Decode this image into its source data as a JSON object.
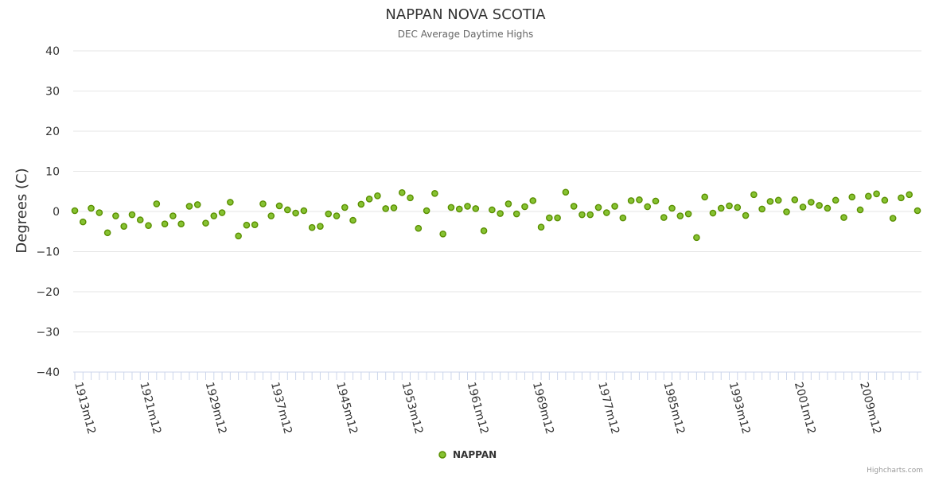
{
  "chart_data": {
    "type": "scatter",
    "title": "NAPPAN NOVA SCOTIA",
    "subtitle": "DEC Average Daytime Highs",
    "xlabel": "",
    "ylabel": "Degrees (C)",
    "ylim": [
      -40,
      40
    ],
    "yticks": [
      40,
      30,
      20,
      10,
      0,
      -10,
      -20,
      -30,
      -40
    ],
    "ytick_labels": [
      "40",
      "30",
      "20",
      "10",
      "0",
      "−10",
      "−20",
      "−30",
      "−40"
    ],
    "x_start_year": 1913,
    "x_end_year": 2016,
    "xtick_labels": [
      "1913m12",
      "1921m12",
      "1929m12",
      "1937m12",
      "1945m12",
      "1953m12",
      "1961m12",
      "1969m12",
      "1977m12",
      "1985m12",
      "1993m12",
      "2001m12",
      "2009m12"
    ],
    "xtick_years": [
      1913,
      1921,
      1929,
      1937,
      1945,
      1953,
      1961,
      1969,
      1977,
      1985,
      1993,
      2001,
      2009
    ],
    "grid": true,
    "legend": "bottom-center",
    "series": [
      {
        "name": "NAPPAN",
        "color": "#86c232",
        "edge_color": "#5a8f00",
        "x": [
          1913,
          1914,
          1915,
          1916,
          1917,
          1918,
          1919,
          1920,
          1921,
          1922,
          1923,
          1924,
          1925,
          1926,
          1927,
          1928,
          1929,
          1930,
          1931,
          1932,
          1933,
          1934,
          1935,
          1936,
          1937,
          1938,
          1939,
          1940,
          1941,
          1942,
          1943,
          1944,
          1945,
          1946,
          1947,
          1948,
          1949,
          1950,
          1951,
          1952,
          1953,
          1954,
          1955,
          1956,
          1957,
          1958,
          1959,
          1960,
          1961,
          1962,
          1963,
          1964,
          1965,
          1966,
          1967,
          1968,
          1969,
          1970,
          1971,
          1972,
          1973,
          1974,
          1975,
          1976,
          1977,
          1978,
          1979,
          1980,
          1981,
          1982,
          1983,
          1984,
          1985,
          1986,
          1987,
          1988,
          1989,
          1990,
          1991,
          1992,
          1993,
          1994,
          1995,
          1996,
          1997,
          1998,
          1999,
          2000,
          2001,
          2002,
          2003,
          2004,
          2005,
          2006,
          2007,
          2008,
          2009,
          2010,
          2011,
          2012,
          2013,
          2014,
          2015,
          2016
        ],
        "values": [
          0.2,
          -2.6,
          0.8,
          -0.3,
          -5.3,
          -1.1,
          -3.7,
          -0.8,
          -2.1,
          -3.5,
          1.9,
          -3.1,
          -1.1,
          -3.1,
          1.3,
          1.7,
          -2.9,
          -1.1,
          -0.3,
          2.3,
          -6.1,
          -3.4,
          -3.3,
          1.9,
          -1.1,
          1.4,
          0.4,
          -0.4,
          0.2,
          -4.0,
          -3.7,
          -0.6,
          -1.1,
          1.0,
          -2.2,
          1.8,
          3.1,
          3.9,
          0.7,
          0.9,
          4.7,
          3.4,
          -4.2,
          0.2,
          4.5,
          -5.6,
          1.0,
          0.6,
          1.3,
          0.7,
          -4.8,
          0.4,
          -0.5,
          1.9,
          -0.6,
          1.2,
          2.7,
          -3.9,
          -1.6,
          -1.6,
          4.8,
          1.3,
          -0.8,
          -0.8,
          1.0,
          -0.3,
          1.3,
          -1.6,
          2.7,
          2.9,
          1.2,
          2.6,
          -1.5,
          0.8,
          -1.1,
          -0.6,
          -6.5,
          3.6,
          -0.4,
          0.8,
          1.4,
          1.0,
          -1.0,
          4.2,
          0.6,
          2.5,
          2.8,
          -0.1,
          2.9,
          1.1,
          2.3,
          1.5,
          0.8,
          2.8,
          -1.5,
          3.6,
          0.4,
          3.8,
          4.4,
          2.8,
          -1.7,
          3.4,
          4.2,
          0.2
        ]
      }
    ]
  },
  "credits": "Highcharts.com"
}
